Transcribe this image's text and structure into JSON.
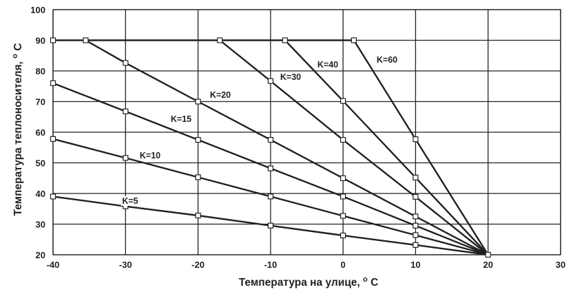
{
  "chart_data": {
    "type": "line",
    "title": "",
    "xlabel": "Температура на улице, °С",
    "ylabel": "Температура теплоносителя, °С",
    "xlabel_text": "Температура на улице,",
    "ylabel_text": "Температура теплоносителя,",
    "unit_degree": "о",
    "unit_letter": "С",
    "xlim": [
      -40,
      30
    ],
    "ylim": [
      20,
      100
    ],
    "xticks": [
      -40,
      -30,
      -20,
      -10,
      0,
      10,
      20,
      30
    ],
    "yticks": [
      20,
      30,
      40,
      50,
      60,
      70,
      80,
      90,
      100
    ],
    "grid": true,
    "legend": "none",
    "line_color": "#231f20",
    "marker": "open-square",
    "series": [
      {
        "name": "K=5",
        "x": [
          -40,
          -30,
          -20,
          -10,
          0,
          10,
          20
        ],
        "y": [
          39,
          35.8,
          32.8,
          29.5,
          26.3,
          23.2,
          20
        ]
      },
      {
        "name": "K=10",
        "x": [
          -40,
          -30,
          -20,
          -10,
          0,
          10,
          20
        ],
        "y": [
          57.8,
          51.6,
          45.3,
          39,
          32.7,
          26.4,
          20
        ]
      },
      {
        "name": "K=15",
        "x": [
          -40,
          -30,
          -20,
          -10,
          0,
          10,
          20
        ],
        "y": [
          76,
          66.8,
          57.5,
          48.2,
          39,
          29.5,
          20
        ]
      },
      {
        "name": "K=20",
        "x": [
          -35.5,
          -30,
          -20,
          -10,
          0,
          10,
          20
        ],
        "y": [
          90,
          82.6,
          70,
          57.5,
          45,
          32.5,
          20
        ]
      },
      {
        "name": "K=30",
        "x": [
          -17,
          -10,
          0,
          10,
          20
        ],
        "y": [
          90,
          76.7,
          57.5,
          38.9,
          20
        ]
      },
      {
        "name": "K=40",
        "x": [
          -8,
          0,
          10,
          20
        ],
        "y": [
          90,
          70.2,
          45.2,
          20
        ]
      },
      {
        "name": "K=60",
        "x": [
          1.5,
          10,
          20
        ],
        "y": [
          90,
          57.7,
          20
        ]
      }
    ],
    "cap_line": {
      "y": 90,
      "x": [
        -40,
        1.5
      ]
    }
  }
}
